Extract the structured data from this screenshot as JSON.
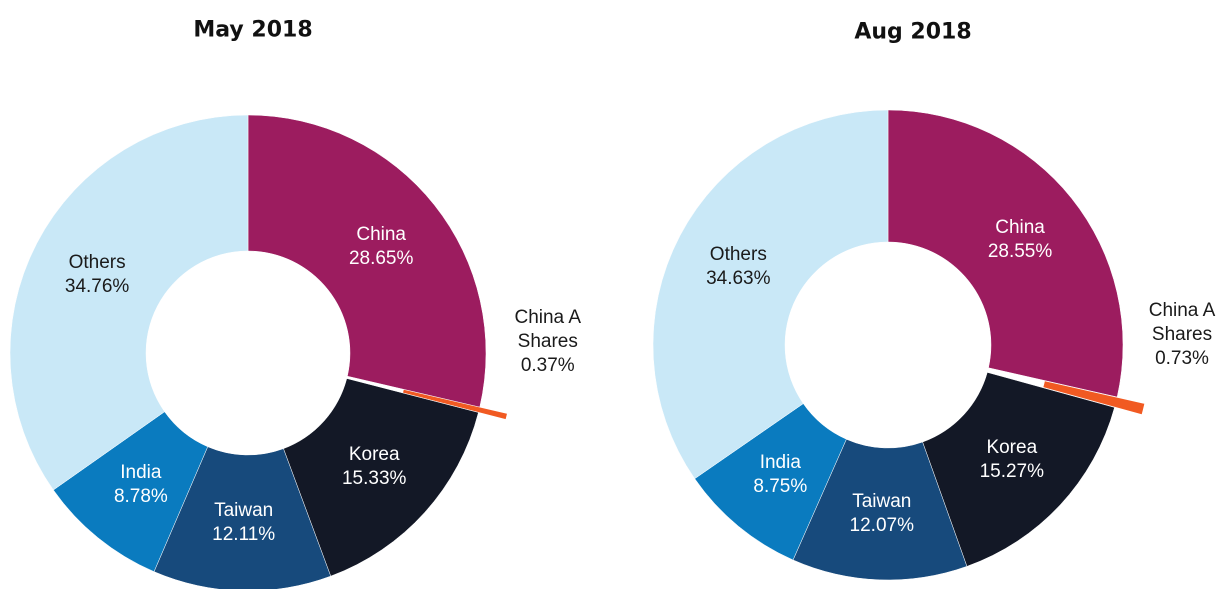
{
  "chart_data": [
    {
      "type": "pie",
      "title": "May 2018",
      "categories": [
        "China",
        "China A Shares",
        "Korea",
        "Taiwan",
        "India",
        "Others"
      ],
      "values": [
        28.65,
        0.37,
        15.33,
        12.11,
        8.78,
        34.76
      ],
      "value_labels": [
        "28.65%",
        "0.37%",
        "15.33%",
        "12.11%",
        "8.78%",
        "34.76%"
      ],
      "colors": [
        "#9c1c5f",
        "#f15a22",
        "#131826",
        "#174a7c",
        "#0a7bbf",
        "#c9e8f7"
      ]
    },
    {
      "type": "pie",
      "title": "Aug 2018",
      "categories": [
        "China",
        "China A Shares",
        "Korea",
        "Taiwan",
        "India",
        "Others"
      ],
      "values": [
        28.55,
        0.73,
        15.27,
        12.07,
        8.75,
        34.63
      ],
      "value_labels": [
        "28.55%",
        "0.73%",
        "15.27%",
        "12.07%",
        "8.75%",
        "34.63%"
      ],
      "colors": [
        "#9c1c5f",
        "#f15a22",
        "#131826",
        "#174a7c",
        "#0a7bbf",
        "#c9e8f7"
      ]
    }
  ]
}
